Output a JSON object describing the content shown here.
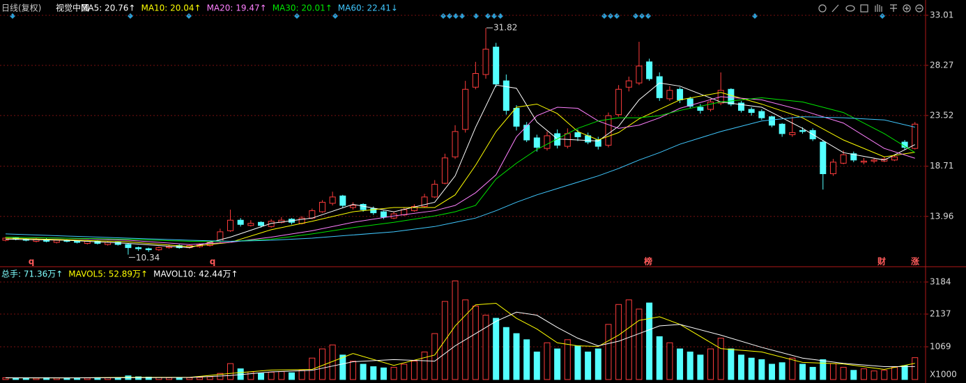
{
  "header": {
    "period": "日线(复权)",
    "name": "视觉中国"
  },
  "chart_data": [
    {
      "type": "candlestick",
      "open": [
        11.7,
        11.9,
        11.8,
        11.6,
        11.8,
        11.5,
        11.7,
        11.6,
        11.4,
        11.6,
        11.3,
        11.5,
        11.3,
        11.0,
        10.9,
        10.8,
        11.0,
        11.2,
        11.0,
        11.1,
        11.2,
        11.6,
        12.6,
        13.6,
        13.1,
        13.4,
        13.0,
        13.4,
        13.7,
        13.3,
        13.8,
        14.4,
        15.2,
        15.9,
        14.8,
        15.1,
        14.7,
        14.4,
        13.8,
        14.1,
        14.5,
        14.9,
        15.8,
        17.1,
        19.6,
        22.2,
        26.2,
        27.4,
        30.0,
        26.8,
        24.2,
        22.6,
        21.4,
        20.4,
        21.8,
        20.6,
        21.9,
        21.6,
        21.2,
        20.7,
        23.6,
        26.2,
        26.6,
        28.6,
        27.2,
        25.1,
        26.0,
        25.1,
        24.3,
        24.1,
        24.7,
        26.0,
        24.7,
        24.1,
        23.9,
        23.4,
        22.7,
        21.7,
        22.1,
        22.1,
        21.0,
        18.0,
        19.0,
        19.9,
        19.1,
        19.2,
        19.2,
        19.3,
        21.0,
        20.4
      ],
      "high": [
        12.0,
        12.0,
        11.9,
        11.9,
        11.9,
        11.8,
        11.8,
        11.7,
        11.7,
        11.7,
        11.6,
        11.6,
        11.4,
        11.1,
        11.0,
        11.1,
        11.3,
        11.3,
        11.3,
        11.4,
        11.6,
        12.8,
        14.6,
        13.8,
        13.6,
        13.5,
        13.7,
        13.9,
        13.8,
        14.0,
        14.7,
        15.5,
        16.3,
        16.0,
        15.3,
        15.2,
        14.9,
        14.5,
        14.4,
        14.8,
        15.1,
        16.1,
        17.4,
        19.9,
        22.6,
        26.8,
        28.6,
        31.82,
        30.4,
        27.4,
        24.5,
        22.9,
        21.7,
        22.0,
        22.2,
        22.3,
        22.2,
        21.9,
        21.5,
        23.8,
        26.4,
        27.2,
        30.5,
        28.9,
        27.6,
        26.3,
        26.2,
        25.3,
        24.6,
        25.1,
        27.6,
        26.1,
        24.9,
        24.3,
        24.1,
        23.5,
        22.8,
        23.4,
        22.4,
        22.3,
        21.2,
        19.4,
        20.2,
        20.1,
        19.5,
        19.5,
        19.6,
        19.8,
        21.2,
        22.9
      ],
      "low": [
        11.6,
        11.7,
        11.6,
        11.5,
        11.5,
        11.4,
        11.5,
        11.4,
        11.3,
        11.3,
        11.2,
        11.2,
        10.34,
        10.7,
        10.6,
        10.7,
        10.9,
        10.9,
        10.9,
        11.0,
        11.1,
        11.5,
        12.5,
        13.0,
        13.0,
        12.9,
        12.9,
        13.3,
        13.2,
        13.2,
        13.7,
        14.3,
        15.0,
        14.8,
        14.6,
        14.4,
        14.1,
        13.7,
        13.7,
        14.0,
        14.4,
        14.8,
        15.7,
        17.0,
        19.4,
        21.9,
        26.0,
        27.0,
        26.2,
        23.6,
        22.1,
        21.0,
        20.1,
        20.2,
        20.4,
        20.4,
        21.1,
        20.8,
        20.3,
        20.5,
        23.4,
        25.8,
        26.4,
        26.8,
        24.9,
        24.9,
        24.7,
        24.2,
        23.7,
        23.9,
        24.5,
        24.4,
        23.8,
        23.5,
        23.1,
        22.4,
        21.5,
        21.5,
        21.8,
        21.1,
        16.5,
        17.8,
        18.9,
        19.1,
        18.9,
        19.0,
        19.1,
        19.2,
        20.3,
        20.3
      ],
      "close": [
        11.9,
        11.8,
        11.7,
        11.8,
        11.6,
        11.7,
        11.6,
        11.5,
        11.6,
        11.4,
        11.5,
        11.3,
        11.0,
        10.9,
        10.8,
        11.0,
        11.1,
        11.0,
        11.2,
        11.3,
        11.5,
        12.5,
        13.6,
        13.2,
        13.3,
        13.1,
        13.5,
        13.6,
        13.4,
        13.8,
        14.5,
        15.3,
        15.8,
        15.0,
        15.0,
        14.6,
        14.3,
        13.9,
        14.2,
        14.6,
        14.9,
        15.8,
        17.0,
        19.5,
        22.0,
        26.0,
        27.5,
        29.8,
        26.5,
        24.0,
        22.5,
        21.2,
        20.5,
        21.6,
        20.7,
        21.8,
        21.5,
        21.0,
        20.6,
        23.5,
        26.0,
        26.8,
        28.2,
        27.0,
        25.2,
        25.9,
        25.0,
        24.4,
        24.0,
        24.8,
        25.9,
        24.6,
        24.0,
        23.8,
        23.3,
        22.6,
        21.8,
        21.9,
        22.0,
        21.3,
        18.0,
        19.1,
        19.8,
        19.3,
        19.2,
        19.3,
        19.4,
        19.6,
        20.5,
        22.7
      ],
      "up_color": "#ff3c3c",
      "down_color": "#54ffff",
      "ylim": [
        9.26,
        33.8
      ],
      "yticks": [
        13.96,
        18.71,
        23.52,
        28.27,
        33.01
      ],
      "grid": true,
      "ma_x": [
        0,
        6,
        12,
        18,
        22,
        26,
        30,
        34,
        38,
        42,
        44,
        46,
        48,
        50,
        52,
        54,
        56,
        58,
        60,
        62,
        64,
        66,
        70,
        74,
        78,
        82,
        86,
        89
      ],
      "series": [
        {
          "label": "MA5: 20.76↑",
          "color": "#ffffff",
          "values": [
            11.8,
            11.7,
            11.4,
            11.0,
            12.0,
            13.3,
            13.8,
            15.1,
            14.4,
            15.3,
            17.8,
            22.4,
            26.4,
            26.1,
            22.9,
            21.3,
            21.2,
            21.1,
            22.5,
            25.0,
            26.6,
            26.3,
            24.8,
            24.3,
            22.3,
            20.0,
            19.3,
            20.76
          ]
        },
        {
          "label": "MA10: 20.04↑",
          "color": "#ffff00",
          "values": [
            11.9,
            11.75,
            11.55,
            11.1,
            11.5,
            12.7,
            13.5,
            14.4,
            14.8,
            14.8,
            16.0,
            18.8,
            22.0,
            24.3,
            24.6,
            23.7,
            22.0,
            21.2,
            21.9,
            23.2,
            24.1,
            25.0,
            25.7,
            24.6,
            23.3,
            21.2,
            19.6,
            20.04
          ]
        },
        {
          "label": "MA20: 19.47↑",
          "color": "#ff80ff",
          "values": [
            12.0,
            11.9,
            11.7,
            11.3,
            11.5,
            12.0,
            12.6,
            13.4,
            14.0,
            14.5,
            15.0,
            16.2,
            17.9,
            21.5,
            23.5,
            24.3,
            24.2,
            23.0,
            22.3,
            22.6,
            23.3,
            24.2,
            25.3,
            25.0,
            24.0,
            22.8,
            20.4,
            19.47
          ]
        },
        {
          "label": "MA30: 20.01↑",
          "color": "#00e600",
          "values": [
            12.0,
            11.9,
            11.8,
            11.6,
            11.6,
            11.8,
            12.3,
            12.9,
            13.4,
            14.0,
            14.4,
            15.0,
            17.5,
            19.0,
            20.3,
            21.3,
            22.3,
            23.0,
            23.3,
            23.3,
            23.5,
            24.0,
            24.8,
            25.2,
            24.8,
            23.8,
            21.8,
            20.01
          ]
        },
        {
          "label": "MA60: 22.41↓",
          "color": "#40c8ff",
          "values": [
            12.3,
            12.1,
            11.9,
            11.7,
            11.6,
            11.7,
            11.9,
            12.2,
            12.5,
            13.0,
            13.4,
            13.8,
            14.5,
            15.3,
            16.0,
            16.6,
            17.2,
            17.8,
            18.5,
            19.3,
            20.0,
            20.8,
            22.0,
            23.0,
            23.4,
            23.3,
            23.1,
            22.41
          ]
        }
      ],
      "markers": [
        "q",
        "q",
        "榜",
        "财",
        "涨"
      ]
    },
    {
      "type": "volume",
      "label": "总手: 71.36万↑",
      "color": "#7fffff",
      "values": [
        60,
        50,
        55,
        45,
        60,
        50,
        55,
        45,
        50,
        60,
        55,
        65,
        120,
        90,
        80,
        70,
        60,
        55,
        60,
        70,
        90,
        200,
        520,
        350,
        250,
        200,
        240,
        260,
        220,
        300,
        700,
        1000,
        1130,
        800,
        600,
        500,
        420,
        380,
        400,
        500,
        600,
        900,
        1500,
        2550,
        3220,
        2600,
        2400,
        2100,
        2000,
        1700,
        1500,
        1300,
        900,
        1200,
        1000,
        1300,
        1100,
        900,
        1000,
        1800,
        2450,
        2600,
        2300,
        2500,
        1400,
        1200,
        1000,
        900,
        800,
        1000,
        1350,
        1000,
        800,
        700,
        650,
        500,
        550,
        700,
        500,
        400,
        650,
        520,
        400,
        300,
        350,
        280,
        300,
        400,
        450,
        713.6
      ],
      "ylim": [
        0,
        3661
      ],
      "yticks": [
        1069,
        2137,
        3184
      ],
      "unit_label": "X1000",
      "grid": true,
      "ma_x": [
        0,
        6,
        12,
        18,
        22,
        26,
        30,
        34,
        38,
        42,
        44,
        46,
        48,
        50,
        52,
        54,
        56,
        58,
        60,
        62,
        64,
        66,
        70,
        74,
        78,
        82,
        86,
        89
      ],
      "series": [
        {
          "label": "MAVOL5: 52.89万↑",
          "color": "#ffff00",
          "values": [
            55,
            54,
            70,
            70,
            200,
            310,
            330,
            850,
            460,
            800,
            1750,
            2440,
            2490,
            2000,
            1650,
            1200,
            1100,
            1080,
            1450,
            1930,
            2050,
            1800,
            1010,
            900,
            560,
            510,
            330,
            528.9
          ]
        },
        {
          "label": "MAVOL10: 42.44万↑",
          "color": "#ffffff",
          "values": [
            58,
            55,
            60,
            68,
            130,
            250,
            300,
            580,
            650,
            600,
            1100,
            1500,
            1900,
            2200,
            2100,
            1700,
            1350,
            1100,
            1250,
            1500,
            1750,
            1800,
            1450,
            1050,
            700,
            530,
            420,
            424.4
          ]
        }
      ]
    }
  ]
}
